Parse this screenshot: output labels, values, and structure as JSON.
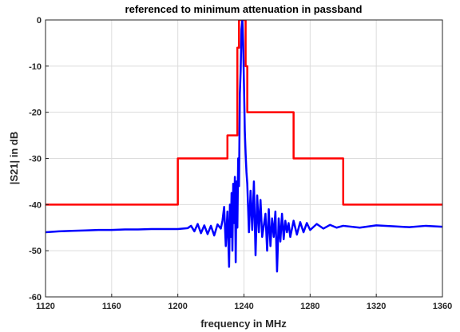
{
  "chart_data": {
    "type": "line",
    "title": "referenced to minimum attenuation in passband",
    "xlabel": "frequency in MHz",
    "ylabel": "|S21| in dB",
    "xlim": [
      1120,
      1360
    ],
    "ylim": [
      -60,
      0
    ],
    "xticks": [
      "1120",
      "1160",
      "1200",
      "1240",
      "1280",
      "1320",
      "1360"
    ],
    "yticks": [
      "0",
      "-10",
      "-20",
      "-30",
      "-40",
      "-50",
      "-60"
    ],
    "grid": true,
    "series": [
      {
        "color": "#ff0000",
        "style": "step",
        "x": [
          1120,
          1200,
          1200,
          1230,
          1230,
          1236,
          1236,
          1237,
          1237,
          1238,
          1238,
          1241,
          1241,
          1242,
          1242,
          1243,
          1243,
          1270,
          1270,
          1300,
          1300,
          1360
        ],
        "y": [
          -40,
          -40,
          -30,
          -30,
          -25,
          -25,
          -6,
          -6,
          0,
          0,
          0,
          0,
          -10,
          -10,
          -20,
          -20,
          -20,
          -20,
          -30,
          -30,
          -40,
          -40
        ]
      },
      {
        "color": "#0000ff",
        "style": "line",
        "x": [
          1120,
          1128,
          1136,
          1144,
          1152,
          1160,
          1168,
          1176,
          1184,
          1192,
          1200,
          1206,
          1208,
          1210,
          1212,
          1214,
          1216,
          1218,
          1220,
          1222,
          1224,
          1226,
          1227,
          1228,
          1229,
          1230,
          1231,
          1231.5,
          1232,
          1232.5,
          1233,
          1233.5,
          1234,
          1234.5,
          1235,
          1235.5,
          1236,
          1236.5,
          1237,
          1237.5,
          1238,
          1238.5,
          1239,
          1239.5,
          1240,
          1240.5,
          1241,
          1241.5,
          1242,
          1243,
          1244,
          1245,
          1246,
          1247,
          1248,
          1249,
          1250,
          1251,
          1252,
          1253,
          1254,
          1255,
          1256,
          1257,
          1258,
          1259,
          1260,
          1261,
          1262,
          1263,
          1264,
          1265,
          1266,
          1267,
          1268,
          1270,
          1272,
          1274,
          1276,
          1278,
          1280,
          1284,
          1288,
          1292,
          1296,
          1300,
          1310,
          1320,
          1330,
          1340,
          1350,
          1360
        ],
        "y": [
          -46,
          -45.8,
          -45.7,
          -45.6,
          -45.5,
          -45.5,
          -45.4,
          -45.4,
          -45.3,
          -45.3,
          -45.3,
          -45.1,
          -44.6,
          -45.8,
          -44.2,
          -46.2,
          -44.5,
          -46.4,
          -44.6,
          -46.7,
          -44.3,
          -45.2,
          -43.5,
          -40.5,
          -49,
          -41.5,
          -53.5,
          -40,
          -47,
          -37.5,
          -50,
          -35.5,
          -44,
          -34,
          -52.5,
          -35,
          -45,
          -30,
          -36,
          -16,
          -11,
          -2,
          0,
          -5,
          -14,
          -24,
          -29,
          -33,
          -35.5,
          -46,
          -37,
          -45.5,
          -35,
          -51,
          -38,
          -46,
          -39,
          -47,
          -44.5,
          -42,
          -50,
          -41,
          -49,
          -43,
          -47,
          -41.5,
          -54.5,
          -43,
          -48,
          -42,
          -47.5,
          -43.5,
          -46,
          -44,
          -47,
          -43.5,
          -46.5,
          -43.8,
          -46,
          -44,
          -45.5,
          -44.2,
          -45.2,
          -44.4,
          -45,
          -44.6,
          -45,
          -44.5,
          -44.7,
          -44.9,
          -44.6,
          -44.8
        ]
      }
    ]
  }
}
